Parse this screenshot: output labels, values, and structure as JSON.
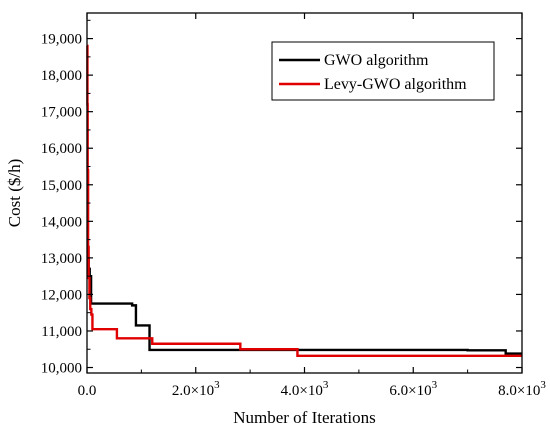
{
  "chart_data": {
    "type": "line",
    "xlabel": "Number of Iterations",
    "ylabel": "Cost ($/h)",
    "xlim": [
      0,
      8000
    ],
    "ylim": [
      9850,
      19700
    ],
    "x_ticks": [
      {
        "value": 0,
        "label": "0.0"
      },
      {
        "value": 2000,
        "label": "2.0×10",
        "exp": "3"
      },
      {
        "value": 4000,
        "label": "4.0×10",
        "exp": "3"
      },
      {
        "value": 6000,
        "label": "6.0×10",
        "exp": "3"
      },
      {
        "value": 8000,
        "label": "8.0×10",
        "exp": "3"
      }
    ],
    "y_ticks": [
      {
        "value": 10000,
        "label": "10,000"
      },
      {
        "value": 11000,
        "label": "11,000"
      },
      {
        "value": 12000,
        "label": "12,000"
      },
      {
        "value": 13000,
        "label": "13,000"
      },
      {
        "value": 14000,
        "label": "14,000"
      },
      {
        "value": 15000,
        "label": "15,000"
      },
      {
        "value": 16000,
        "label": "16,000"
      },
      {
        "value": 17000,
        "label": "17,000"
      },
      {
        "value": 18000,
        "label": "18,000"
      },
      {
        "value": 19000,
        "label": "19,000"
      }
    ],
    "grid": false,
    "legend_position": "top-right",
    "series": [
      {
        "name": "GWO algorithm",
        "color": "#000000",
        "step": true,
        "points": [
          [
            0,
            13300
          ],
          [
            15,
            12950
          ],
          [
            30,
            12700
          ],
          [
            50,
            12500
          ],
          [
            75,
            11750
          ],
          [
            800,
            11750
          ],
          [
            830,
            11700
          ],
          [
            900,
            11150
          ],
          [
            1100,
            11150
          ],
          [
            1150,
            10480
          ],
          [
            3900,
            10480
          ],
          [
            7000,
            10470
          ],
          [
            7700,
            10380
          ],
          [
            8000,
            10380
          ]
        ]
      },
      {
        "name": "Levy-GWO algorithm",
        "color": "#e00000",
        "step": true,
        "points": [
          [
            0,
            18800
          ],
          [
            8,
            17200
          ],
          [
            12,
            15400
          ],
          [
            20,
            13300
          ],
          [
            30,
            12450
          ],
          [
            45,
            11900
          ],
          [
            60,
            11600
          ],
          [
            80,
            11450
          ],
          [
            100,
            11050
          ],
          [
            530,
            11050
          ],
          [
            550,
            10800
          ],
          [
            1150,
            10800
          ],
          [
            1200,
            10650
          ],
          [
            2800,
            10650
          ],
          [
            2820,
            10500
          ],
          [
            3850,
            10500
          ],
          [
            3870,
            10320
          ],
          [
            8000,
            10320
          ]
        ]
      }
    ]
  }
}
